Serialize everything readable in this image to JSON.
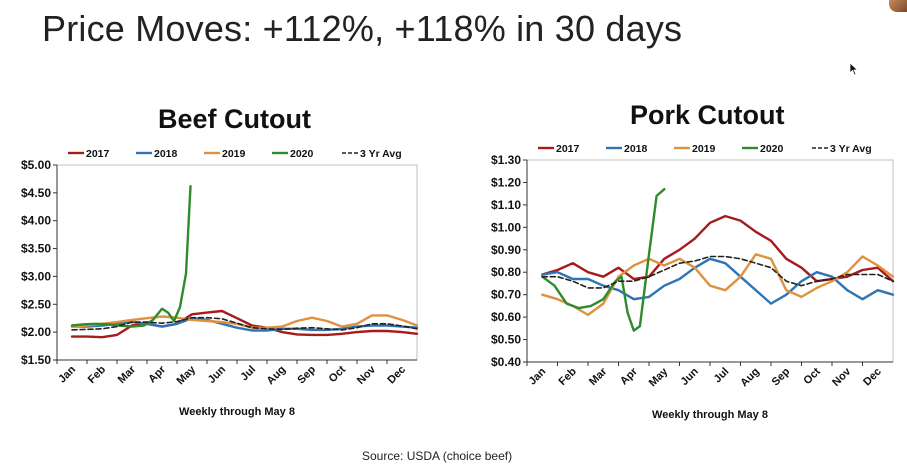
{
  "slide": {
    "title": "Price Moves: +112%, +118% in 30 days",
    "source": "Source:  USDA (choice beef)"
  },
  "colors": {
    "2017": "#a51c1c",
    "2018": "#2e75b6",
    "2019": "#e0913e",
    "2020": "#2e8b2e",
    "3 Yr Avg": "#222222"
  },
  "chart_data": [
    {
      "type": "line",
      "title": "Beef Cutout",
      "xlabel": "Weekly through May 8",
      "ylabel": "",
      "categories": [
        "Jan",
        "Feb",
        "Mar",
        "Apr",
        "May",
        "Jun",
        "Jul",
        "Aug",
        "Sep",
        "Oct",
        "Nov",
        "Dec"
      ],
      "ylim": [
        1.5,
        5.0
      ],
      "yticks": [
        "$1.50",
        "$2.00",
        "$2.50",
        "$3.00",
        "$3.50",
        "$4.00",
        "$4.50",
        "$5.00"
      ],
      "grid": false,
      "legend": "top",
      "series": [
        {
          "name": "2017",
          "style": "solid",
          "points": [
            [
              0,
              1.92
            ],
            [
              0.5,
              1.92
            ],
            [
              1,
              1.91
            ],
            [
              1.5,
              1.95
            ],
            [
              2,
              2.12
            ],
            [
              2.5,
              2.15
            ],
            [
              3,
              2.1
            ],
            [
              3.5,
              2.15
            ],
            [
              4,
              2.32
            ],
            [
              4.5,
              2.35
            ],
            [
              5,
              2.38
            ],
            [
              5.5,
              2.25
            ],
            [
              6,
              2.12
            ],
            [
              6.5,
              2.08
            ],
            [
              7,
              2.0
            ],
            [
              7.5,
              1.96
            ],
            [
              8,
              1.95
            ],
            [
              8.5,
              1.95
            ],
            [
              9,
              1.97
            ],
            [
              9.5,
              2.0
            ],
            [
              10,
              2.02
            ],
            [
              10.5,
              2.02
            ],
            [
              11,
              2.0
            ],
            [
              11.5,
              1.97
            ]
          ]
        },
        {
          "name": "2018",
          "style": "solid",
          "points": [
            [
              0,
              2.1
            ],
            [
              0.5,
              2.1
            ],
            [
              1,
              2.12
            ],
            [
              1.5,
              2.15
            ],
            [
              2,
              2.18
            ],
            [
              2.5,
              2.15
            ],
            [
              3,
              2.1
            ],
            [
              3.5,
              2.15
            ],
            [
              4,
              2.25
            ],
            [
              4.5,
              2.22
            ],
            [
              5,
              2.15
            ],
            [
              5.5,
              2.08
            ],
            [
              6,
              2.03
            ],
            [
              6.5,
              2.03
            ],
            [
              7,
              2.06
            ],
            [
              7.5,
              2.06
            ],
            [
              8,
              2.04
            ],
            [
              8.5,
              2.04
            ],
            [
              9,
              2.06
            ],
            [
              9.5,
              2.1
            ],
            [
              10,
              2.12
            ],
            [
              10.5,
              2.12
            ],
            [
              11,
              2.1
            ],
            [
              11.5,
              2.08
            ]
          ]
        },
        {
          "name": "2019",
          "style": "solid",
          "points": [
            [
              0,
              2.1
            ],
            [
              0.5,
              2.12
            ],
            [
              1,
              2.15
            ],
            [
              1.5,
              2.18
            ],
            [
              2,
              2.22
            ],
            [
              2.5,
              2.25
            ],
            [
              3,
              2.28
            ],
            [
              3.5,
              2.26
            ],
            [
              4,
              2.22
            ],
            [
              4.5,
              2.2
            ],
            [
              5,
              2.18
            ],
            [
              5.5,
              2.15
            ],
            [
              6,
              2.08
            ],
            [
              6.5,
              2.08
            ],
            [
              7,
              2.1
            ],
            [
              7.5,
              2.2
            ],
            [
              8,
              2.26
            ],
            [
              8.5,
              2.2
            ],
            [
              9,
              2.1
            ],
            [
              9.5,
              2.15
            ],
            [
              10,
              2.3
            ],
            [
              10.5,
              2.3
            ],
            [
              11,
              2.22
            ],
            [
              11.5,
              2.12
            ]
          ]
        },
        {
          "name": "2020",
          "style": "solid",
          "points": [
            [
              0,
              2.12
            ],
            [
              0.4,
              2.14
            ],
            [
              0.8,
              2.15
            ],
            [
              1.2,
              2.14
            ],
            [
              1.6,
              2.12
            ],
            [
              2,
              2.1
            ],
            [
              2.4,
              2.12
            ],
            [
              2.7,
              2.22
            ],
            [
              3,
              2.42
            ],
            [
              3.2,
              2.35
            ],
            [
              3.4,
              2.2
            ],
            [
              3.6,
              2.45
            ],
            [
              3.8,
              3.05
            ],
            [
              3.95,
              4.62
            ]
          ]
        },
        {
          "name": "3 Yr Avg",
          "style": "dashed",
          "points": [
            [
              0,
              2.04
            ],
            [
              0.5,
              2.05
            ],
            [
              1,
              2.06
            ],
            [
              1.5,
              2.1
            ],
            [
              2,
              2.18
            ],
            [
              2.5,
              2.18
            ],
            [
              3,
              2.16
            ],
            [
              3.5,
              2.19
            ],
            [
              4,
              2.26
            ],
            [
              4.5,
              2.26
            ],
            [
              5,
              2.24
            ],
            [
              5.5,
              2.16
            ],
            [
              6,
              2.08
            ],
            [
              6.5,
              2.06
            ],
            [
              7,
              2.05
            ],
            [
              7.5,
              2.07
            ],
            [
              8,
              2.08
            ],
            [
              8.5,
              2.06
            ],
            [
              9,
              2.04
            ],
            [
              9.5,
              2.08
            ],
            [
              10,
              2.15
            ],
            [
              10.5,
              2.15
            ],
            [
              11,
              2.11
            ],
            [
              11.5,
              2.06
            ]
          ]
        }
      ]
    },
    {
      "type": "line",
      "title": "Pork Cutout",
      "xlabel": "Weekly through May 8",
      "ylabel": "",
      "categories": [
        "Jan",
        "Feb",
        "Mar",
        "Apr",
        "May",
        "Jun",
        "Jul",
        "Aug",
        "Sep",
        "Oct",
        "Nov",
        "Dec"
      ],
      "ylim": [
        0.4,
        1.3
      ],
      "yticks": [
        "$0.40",
        "$0.50",
        "$0.60",
        "$0.70",
        "$0.80",
        "$0.90",
        "$1.00",
        "$1.10",
        "$1.20",
        "$1.30"
      ],
      "grid": false,
      "legend": "top",
      "series": [
        {
          "name": "2017",
          "style": "solid",
          "points": [
            [
              0,
              0.79
            ],
            [
              0.5,
              0.81
            ],
            [
              1,
              0.84
            ],
            [
              1.5,
              0.8
            ],
            [
              2,
              0.78
            ],
            [
              2.5,
              0.82
            ],
            [
              3,
              0.77
            ],
            [
              3.5,
              0.78
            ],
            [
              4,
              0.86
            ],
            [
              4.5,
              0.9
            ],
            [
              5,
              0.95
            ],
            [
              5.5,
              1.02
            ],
            [
              6,
              1.05
            ],
            [
              6.5,
              1.03
            ],
            [
              7,
              0.98
            ],
            [
              7.5,
              0.94
            ],
            [
              8,
              0.86
            ],
            [
              8.5,
              0.82
            ],
            [
              9,
              0.76
            ],
            [
              9.5,
              0.77
            ],
            [
              10,
              0.78
            ],
            [
              10.5,
              0.81
            ],
            [
              11,
              0.82
            ],
            [
              11.5,
              0.76
            ]
          ]
        },
        {
          "name": "2018",
          "style": "solid",
          "points": [
            [
              0,
              0.79
            ],
            [
              0.5,
              0.8
            ],
            [
              1,
              0.77
            ],
            [
              1.5,
              0.77
            ],
            [
              2,
              0.74
            ],
            [
              2.5,
              0.72
            ],
            [
              3,
              0.68
            ],
            [
              3.5,
              0.69
            ],
            [
              4,
              0.74
            ],
            [
              4.5,
              0.77
            ],
            [
              5,
              0.82
            ],
            [
              5.5,
              0.86
            ],
            [
              6,
              0.84
            ],
            [
              6.5,
              0.78
            ],
            [
              7,
              0.72
            ],
            [
              7.5,
              0.66
            ],
            [
              8,
              0.7
            ],
            [
              8.5,
              0.76
            ],
            [
              9,
              0.8
            ],
            [
              9.5,
              0.78
            ],
            [
              10,
              0.72
            ],
            [
              10.5,
              0.68
            ],
            [
              11,
              0.72
            ],
            [
              11.5,
              0.7
            ]
          ]
        },
        {
          "name": "2019",
          "style": "solid",
          "points": [
            [
              0,
              0.7
            ],
            [
              0.5,
              0.68
            ],
            [
              1,
              0.65
            ],
            [
              1.5,
              0.61
            ],
            [
              2,
              0.66
            ],
            [
              2.5,
              0.78
            ],
            [
              3,
              0.83
            ],
            [
              3.5,
              0.86
            ],
            [
              4,
              0.83
            ],
            [
              4.5,
              0.86
            ],
            [
              5,
              0.82
            ],
            [
              5.5,
              0.74
            ],
            [
              6,
              0.72
            ],
            [
              6.5,
              0.78
            ],
            [
              7,
              0.88
            ],
            [
              7.5,
              0.86
            ],
            [
              8,
              0.72
            ],
            [
              8.5,
              0.69
            ],
            [
              9,
              0.73
            ],
            [
              9.5,
              0.76
            ],
            [
              10,
              0.8
            ],
            [
              10.5,
              0.87
            ],
            [
              11,
              0.83
            ],
            [
              11.5,
              0.78
            ]
          ]
        },
        {
          "name": "2020",
          "style": "solid",
          "points": [
            [
              0,
              0.78
            ],
            [
              0.4,
              0.74
            ],
            [
              0.8,
              0.66
            ],
            [
              1.2,
              0.64
            ],
            [
              1.6,
              0.65
            ],
            [
              2,
              0.68
            ],
            [
              2.4,
              0.76
            ],
            [
              2.6,
              0.78
            ],
            [
              2.8,
              0.62
            ],
            [
              3,
              0.54
            ],
            [
              3.2,
              0.56
            ],
            [
              3.5,
              0.88
            ],
            [
              3.75,
              1.14
            ],
            [
              4.0,
              1.17
            ]
          ]
        },
        {
          "name": "3 Yr Avg",
          "style": "dashed",
          "points": [
            [
              0,
              0.78
            ],
            [
              0.5,
              0.78
            ],
            [
              1,
              0.76
            ],
            [
              1.5,
              0.73
            ],
            [
              2,
              0.73
            ],
            [
              2.5,
              0.76
            ],
            [
              3,
              0.76
            ],
            [
              3.5,
              0.78
            ],
            [
              4,
              0.81
            ],
            [
              4.5,
              0.84
            ],
            [
              5,
              0.85
            ],
            [
              5.5,
              0.87
            ],
            [
              6,
              0.87
            ],
            [
              6.5,
              0.86
            ],
            [
              7,
              0.84
            ],
            [
              7.5,
              0.82
            ],
            [
              8,
              0.76
            ],
            [
              8.5,
              0.74
            ],
            [
              9,
              0.76
            ],
            [
              9.5,
              0.77
            ],
            [
              10,
              0.79
            ],
            [
              10.5,
              0.79
            ],
            [
              11,
              0.79
            ],
            [
              11.5,
              0.76
            ]
          ]
        }
      ]
    }
  ]
}
